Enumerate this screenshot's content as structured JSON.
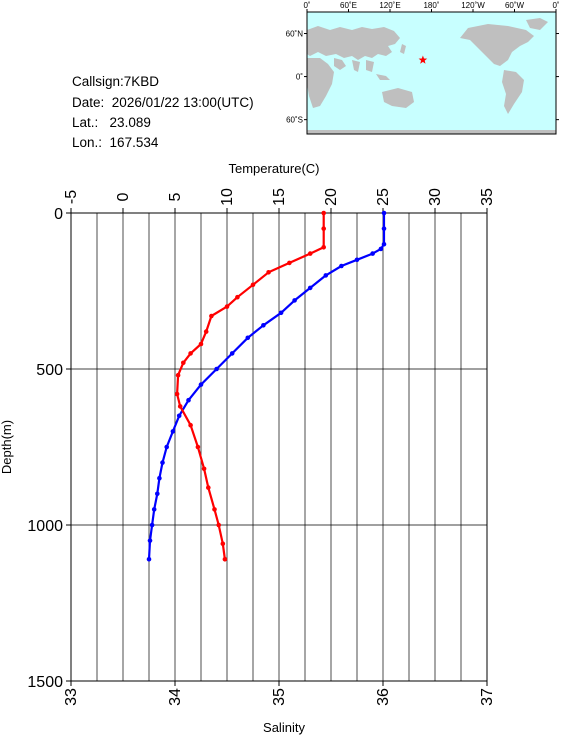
{
  "station": {
    "callsign_label": "Callsign:",
    "callsign": "7KBD",
    "date_label": "Date:",
    "date": "2026/01/22 13:00(UTC)",
    "lat_label": "Lat.:",
    "lat": "23.089",
    "lon_label": "Lon.:",
    "lon": "167.534"
  },
  "map": {
    "lon_ticks": [
      "0˚",
      "60˚E",
      "120˚E",
      "180˚",
      "120˚W",
      "60˚W",
      "0˚"
    ],
    "lat_ticks": [
      "60˚N",
      "0˚",
      "60˚S"
    ],
    "marker": {
      "lat": 23.089,
      "lon": 167.534,
      "color": "#ff0000"
    },
    "ocean_color": "#c8ffff",
    "land_color": "#bfbfbf"
  },
  "chart_data": {
    "type": "line",
    "title": "",
    "ylabel": "Depth(m)",
    "ylim": [
      0,
      1500
    ],
    "y_inverted": true,
    "yticks": [
      "0",
      "500",
      "1000",
      "1500"
    ],
    "top_axis": {
      "label": "Temperature(C)",
      "range": [
        -5,
        35
      ],
      "ticks": [
        "-5",
        "0",
        "5",
        "10",
        "15",
        "20",
        "25",
        "30",
        "35"
      ]
    },
    "bottom_axis": {
      "label": "Salinity",
      "range": [
        33,
        37
      ],
      "ticks": [
        "33",
        "34",
        "35",
        "36",
        "37"
      ]
    },
    "grid": true,
    "series": [
      {
        "axis": "temperature",
        "color": "#0000ff",
        "points": [
          [
            25.1,
            0
          ],
          [
            25.1,
            50
          ],
          [
            25.1,
            100
          ],
          [
            24.8,
            115
          ],
          [
            24.0,
            130
          ],
          [
            22.5,
            150
          ],
          [
            21.0,
            170
          ],
          [
            19.5,
            200
          ],
          [
            18.0,
            240
          ],
          [
            16.5,
            280
          ],
          [
            15.2,
            320
          ],
          [
            13.5,
            360
          ],
          [
            12.0,
            400
          ],
          [
            10.5,
            450
          ],
          [
            9.0,
            500
          ],
          [
            7.5,
            550
          ],
          [
            6.3,
            600
          ],
          [
            5.4,
            650
          ],
          [
            4.8,
            700
          ],
          [
            4.2,
            750
          ],
          [
            3.8,
            800
          ],
          [
            3.5,
            850
          ],
          [
            3.3,
            900
          ],
          [
            3.0,
            950
          ],
          [
            2.8,
            1000
          ],
          [
            2.6,
            1050
          ],
          [
            2.5,
            1110
          ]
        ]
      },
      {
        "axis": "salinity",
        "color": "#ff0000",
        "points": [
          [
            35.43,
            0
          ],
          [
            35.43,
            50
          ],
          [
            35.43,
            110
          ],
          [
            35.3,
            130
          ],
          [
            35.1,
            160
          ],
          [
            34.9,
            190
          ],
          [
            34.75,
            230
          ],
          [
            34.6,
            270
          ],
          [
            34.5,
            300
          ],
          [
            34.35,
            330
          ],
          [
            34.3,
            380
          ],
          [
            34.25,
            420
          ],
          [
            34.15,
            450
          ],
          [
            34.08,
            480
          ],
          [
            34.03,
            520
          ],
          [
            34.02,
            580
          ],
          [
            34.05,
            620
          ],
          [
            34.15,
            680
          ],
          [
            34.22,
            750
          ],
          [
            34.28,
            820
          ],
          [
            34.32,
            880
          ],
          [
            34.38,
            950
          ],
          [
            34.42,
            1000
          ],
          [
            34.46,
            1060
          ],
          [
            34.48,
            1110
          ]
        ]
      }
    ]
  }
}
